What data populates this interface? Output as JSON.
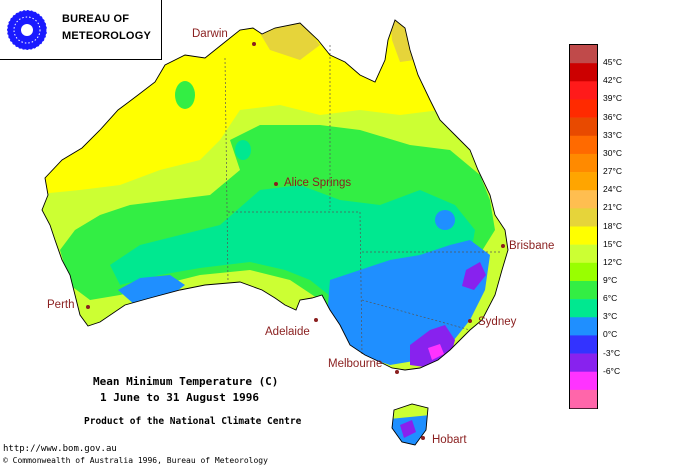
{
  "header": {
    "org_line1": "BUREAU OF",
    "org_line2": "METEOROLOGY"
  },
  "map": {
    "cities": [
      {
        "id": "darwin",
        "name": "Darwin"
      },
      {
        "id": "alice-springs",
        "name": "Alice Springs"
      },
      {
        "id": "brisbane",
        "name": "Brisbane"
      },
      {
        "id": "perth",
        "name": "Perth"
      },
      {
        "id": "adelaide",
        "name": "Adelaide"
      },
      {
        "id": "sydney",
        "name": "Sydney"
      },
      {
        "id": "melbourne",
        "name": "Melbourne"
      },
      {
        "id": "hobart",
        "name": "Hobart"
      }
    ]
  },
  "caption": {
    "title": "Mean Minimum Temperature (C)",
    "period": "1 June to 31 August 1996",
    "product": "Product of the National Climate Centre"
  },
  "footer": {
    "url": "http://www.bom.gov.au",
    "copyright": "© Commonwealth of Australia 1996, Bureau of Meteorology"
  },
  "legend": {
    "colors": [
      "#c04a4a",
      "#cc0000",
      "#ff1a1a",
      "#ff2a00",
      "#e84a00",
      "#ff6a00",
      "#ff8a00",
      "#ffa500",
      "#ffbe50",
      "#e6d43a",
      "#ffff00",
      "#ccff33",
      "#99ff00",
      "#33ee44",
      "#00e890",
      "#1f8fff",
      "#3333ff",
      "#8822ee",
      "#ff33ff",
      "#ff66aa"
    ],
    "labels": [
      "45°C",
      "42°C",
      "39°C",
      "36°C",
      "33°C",
      "30°C",
      "27°C",
      "24°C",
      "21°C",
      "18°C",
      "15°C",
      "12°C",
      "9°C",
      "6°C",
      "3°C",
      "0°C",
      "-3°C",
      "-6°C"
    ]
  }
}
